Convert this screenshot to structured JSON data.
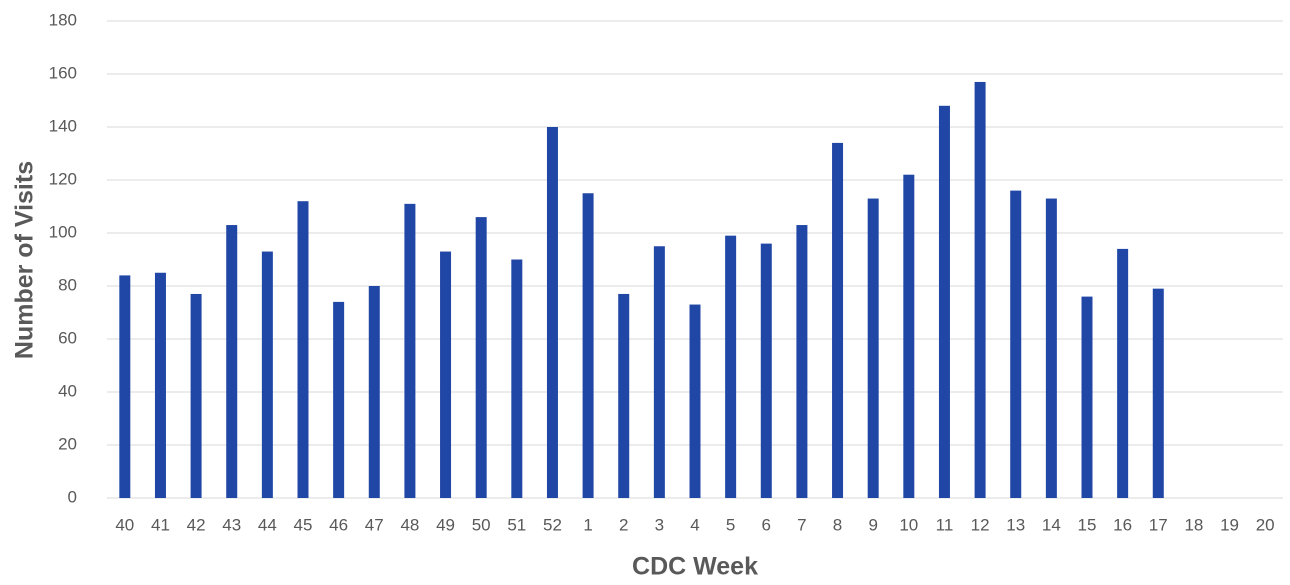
{
  "chart_data": {
    "type": "bar",
    "x_label": "CDC Week",
    "y_label": "Number of Visits",
    "categories": [
      "40",
      "41",
      "42",
      "43",
      "44",
      "45",
      "46",
      "47",
      "48",
      "49",
      "50",
      "51",
      "52",
      "1",
      "2",
      "3",
      "4",
      "5",
      "6",
      "7",
      "8",
      "9",
      "10",
      "11",
      "12",
      "13",
      "14",
      "15",
      "16",
      "17",
      "18",
      "19",
      "20"
    ],
    "values": [
      84,
      85,
      77,
      103,
      93,
      112,
      74,
      80,
      111,
      93,
      106,
      90,
      140,
      115,
      77,
      95,
      73,
      99,
      96,
      103,
      134,
      113,
      122,
      148,
      157,
      116,
      113,
      76,
      94,
      79,
      null,
      null,
      null
    ],
    "color": "#2047a6",
    "ylim": [
      0,
      180
    ],
    "yticks": [
      0,
      20,
      40,
      60,
      80,
      100,
      120,
      140,
      160,
      180
    ],
    "grid": true
  }
}
